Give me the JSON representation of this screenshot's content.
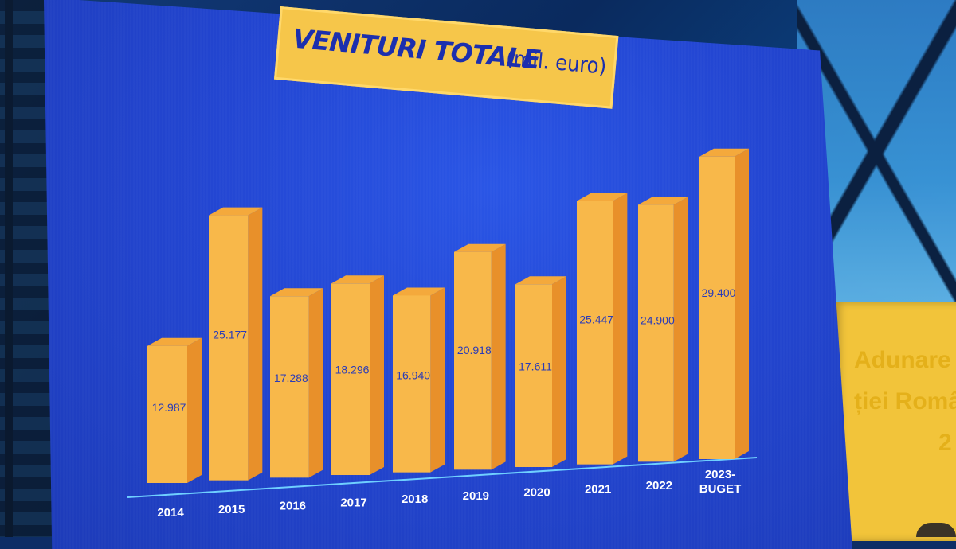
{
  "title": {
    "main": "VENITURI TOTALE",
    "sub": "(mil. euro)"
  },
  "side_banner": {
    "lines": [
      "Adunare",
      "ției Româ",
      "2"
    ]
  },
  "colors": {
    "screen": "#2346d2",
    "bar_front": "#f8b84a",
    "bar_side": "#e8902a",
    "bar_top": "#f4a93c",
    "title_bg": "#f6c64a",
    "title_text": "#1c2fae"
  },
  "chart_data": {
    "type": "bar",
    "categories": [
      "2014",
      "2015",
      "2016",
      "2017",
      "2018",
      "2019",
      "2020",
      "2021",
      "2022",
      "2023-BUGET"
    ],
    "values": [
      12987,
      25177,
      17288,
      18296,
      16940,
      20918,
      17611,
      25447,
      24900,
      29400
    ],
    "value_labels": [
      "12.987",
      "25.177",
      "17.288",
      "18.296",
      "16.940",
      "20.918",
      "17.611",
      "25.447",
      "24.900",
      "29.400"
    ],
    "title": "VENITURI TOTALE (mil. euro)"
  }
}
